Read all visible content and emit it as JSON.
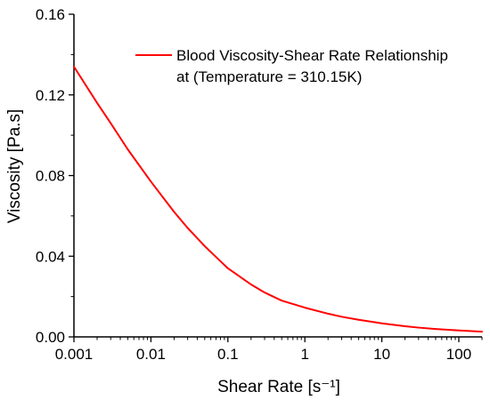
{
  "chart_data": {
    "type": "line",
    "xlabel": "Shear Rate [s⁻¹]",
    "ylabel": "Viscosity [Pa.s]",
    "x_scale": "log",
    "xlim": [
      0.001,
      200
    ],
    "ylim": [
      0,
      0.16
    ],
    "x_ticks": [
      0.001,
      0.01,
      0.1,
      1,
      10,
      100
    ],
    "x_tick_labels": [
      "0.001",
      "0.01",
      "0.1",
      "1",
      "10",
      "100"
    ],
    "y_ticks": [
      0,
      0.04,
      0.08,
      0.12,
      0.16
    ],
    "y_tick_labels": [
      "0.00",
      "0.04",
      "0.08",
      "0.12",
      "0.16"
    ],
    "grid": false,
    "legend_position": "top-right",
    "series": [
      {
        "name": "Blood Viscosity-Shear Rate Relationship at (Temperature = 310.15K)",
        "legend_lines": [
          "Blood Viscosity-Shear Rate Relationship",
          "at (Temperature = 310.15K)"
        ],
        "color": "#ff0000",
        "x": [
          0.001,
          0.002,
          0.003,
          0.005,
          0.01,
          0.02,
          0.03,
          0.05,
          0.1,
          0.2,
          0.3,
          0.5,
          1,
          2,
          3,
          5,
          10,
          20,
          30,
          50,
          100,
          200
        ],
        "y": [
          0.134,
          0.116,
          0.106,
          0.093,
          0.077,
          0.062,
          0.054,
          0.045,
          0.034,
          0.026,
          0.022,
          0.018,
          0.0145,
          0.0115,
          0.01,
          0.0085,
          0.0067,
          0.0053,
          0.0046,
          0.0039,
          0.0032,
          0.0026
        ]
      }
    ]
  }
}
